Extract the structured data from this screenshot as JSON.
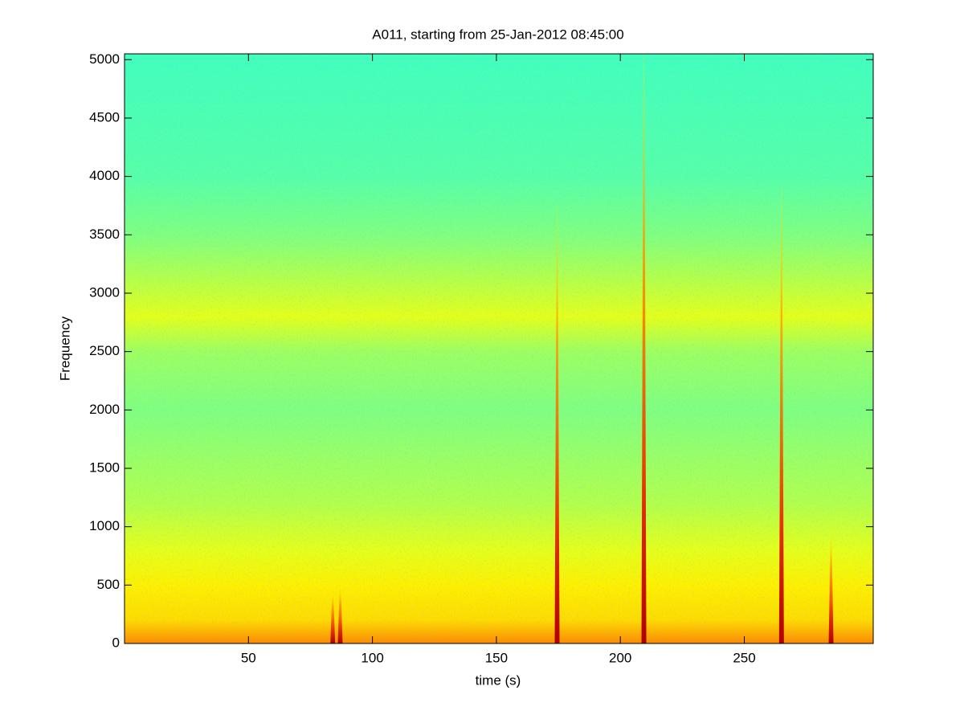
{
  "chart_data": {
    "type": "spectrogram",
    "title": "A011, starting from 25-Jan-2012 08:45:00",
    "xlabel": "time (s)",
    "ylabel": "Frequency",
    "xlim": [
      0,
      302
    ],
    "ylim": [
      0,
      5050
    ],
    "xticks": [
      50,
      100,
      150,
      200,
      250
    ],
    "yticks": [
      0,
      500,
      1000,
      1500,
      2000,
      2500,
      3000,
      3500,
      4000,
      4500,
      5000
    ],
    "colormap": "jet",
    "frequency_profile": {
      "y": [
        0,
        200,
        500,
        800,
        1200,
        2000,
        2500,
        2800,
        3000,
        3500,
        4000,
        5050
      ],
      "level": [
        0.74,
        0.66,
        0.64,
        0.6,
        0.55,
        0.5,
        0.53,
        0.6,
        0.57,
        0.5,
        0.46,
        0.44
      ]
    },
    "streaks": {
      "x": [
        84,
        87,
        174.5,
        209.5,
        265,
        285
      ],
      "y": [
        450,
        500,
        3750,
        5050,
        3900,
        950
      ]
    }
  }
}
